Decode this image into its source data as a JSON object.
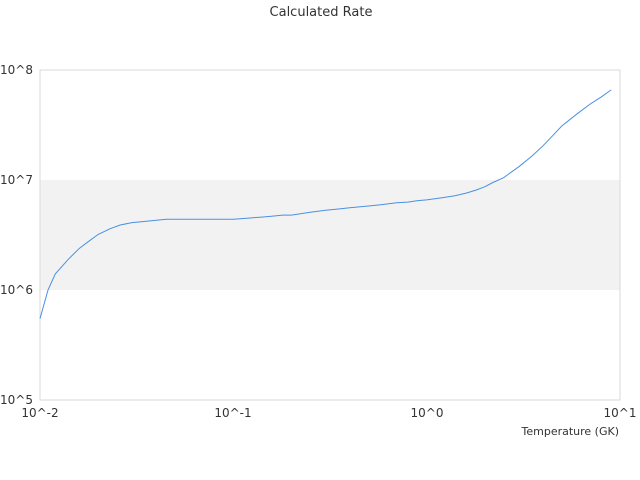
{
  "chart_data": {
    "type": "line",
    "title": "Calculated Rate",
    "xlabel": "Temperature (GK)",
    "ylabel": "",
    "x_scale": "log",
    "y_scale": "log",
    "xlim": [
      0.01,
      10
    ],
    "ylim": [
      100000,
      100000000
    ],
    "x_tick_labels": [
      "10^-2",
      "10^-1",
      "10^0",
      "10^1"
    ],
    "y_tick_labels": [
      "10^5",
      "10^6",
      "10^7",
      "10^8"
    ],
    "grid": false,
    "legend": "none",
    "shaded_band": {
      "y_from": 1000000,
      "y_to": 10000000,
      "color": "#f2f2f2"
    },
    "series": [
      {
        "color": "#4a90e2",
        "x": [
          0.01,
          0.011,
          0.012,
          0.014,
          0.016,
          0.018,
          0.02,
          0.023,
          0.026,
          0.03,
          0.035,
          0.04,
          0.045,
          0.05,
          0.06,
          0.07,
          0.08,
          0.1,
          0.12,
          0.14,
          0.16,
          0.18,
          0.2,
          0.25,
          0.3,
          0.35,
          0.4,
          0.5,
          0.6,
          0.7,
          0.8,
          0.9,
          1.0,
          1.2,
          1.4,
          1.6,
          1.8,
          2.0,
          2.2,
          2.5,
          3.0,
          3.5,
          4.0,
          4.5,
          5.0,
          6.0,
          7.0,
          8.0,
          9.0
        ],
        "y": [
          550000,
          1000000,
          1400000,
          1900000,
          2400000,
          2800000,
          3200000,
          3600000,
          3900000,
          4100000,
          4200000,
          4300000,
          4400000,
          4400000,
          4400000,
          4400000,
          4400000,
          4400000,
          4500000,
          4600000,
          4700000,
          4800000,
          4800000,
          5100000,
          5300000,
          5450000,
          5600000,
          5800000,
          6000000,
          6200000,
          6300000,
          6500000,
          6600000,
          6900000,
          7200000,
          7600000,
          8100000,
          8700000,
          9500000,
          10500000,
          13200000,
          16500000,
          20500000,
          25500000,
          31000000,
          40000000,
          49000000,
          57000000,
          66000000
        ]
      }
    ]
  }
}
